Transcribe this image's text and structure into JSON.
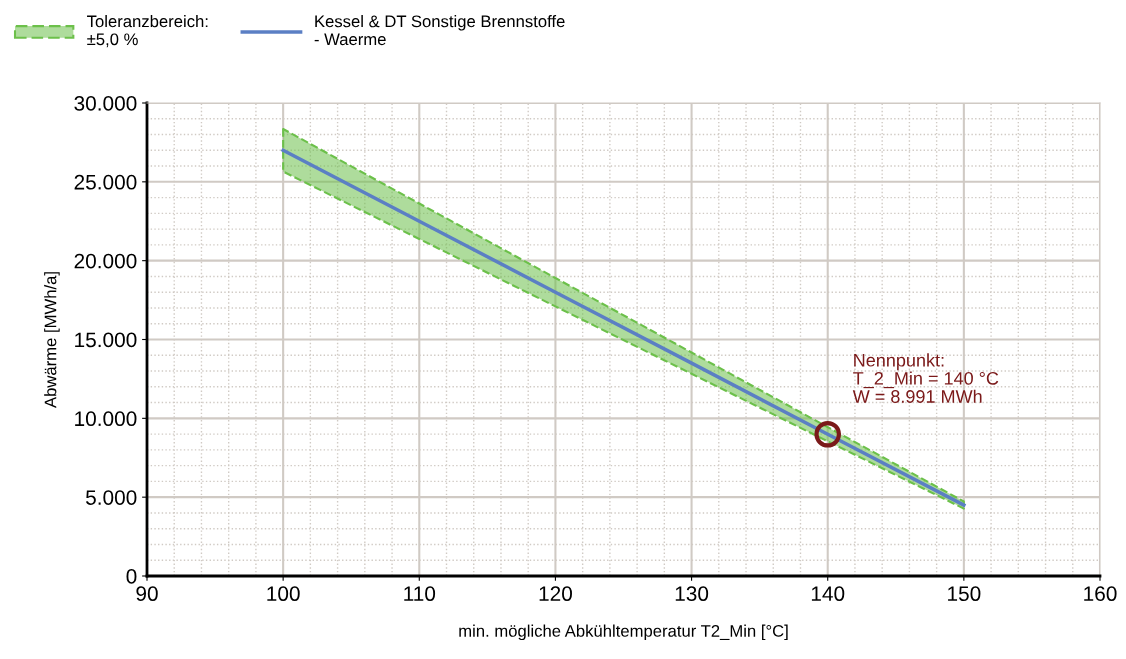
{
  "chart_data": {
    "type": "line",
    "xlabel": "min. mögliche Abkühltemperatur T2_Min [°C]",
    "ylabel": "Abwärme [MWh/a]",
    "xlim": [
      90,
      160
    ],
    "xticks": [
      90,
      100,
      110,
      120,
      130,
      140,
      150,
      160
    ],
    "ylim": [
      0,
      30000
    ],
    "yticks": [
      {
        "value": 0,
        "label": "0"
      },
      {
        "value": 5000,
        "label": "5.000"
      },
      {
        "value": 10000,
        "label": "10.000"
      },
      {
        "value": 15000,
        "label": "15.000"
      },
      {
        "value": 20000,
        "label": "20.000"
      },
      {
        "value": 25000,
        "label": "25.000"
      },
      {
        "value": 30000,
        "label": "30.000"
      }
    ],
    "grid": true,
    "legend": "top left",
    "series": [
      {
        "name": "Kessel & DT Sonstige Brennstoffe\n- Waerme",
        "color": "#5b7fc4",
        "line_style": "solid",
        "marker": "none",
        "x": [
          100,
          110,
          120,
          130,
          140,
          150
        ],
        "values": [
          27000,
          22500,
          18000,
          13500,
          8991,
          4500
        ],
        "lower": [
          25650,
          21375,
          17100,
          12825,
          8541,
          4275
        ],
        "upper": [
          28350,
          23625,
          18900,
          14175,
          9441,
          4725
        ]
      },
      {
        "type": "scatter",
        "color": "#7b1a1a",
        "marker": "circle",
        "x": [
          140
        ],
        "values": [
          8991
        ]
      }
    ],
    "annotations": [
      "Toleranzbereich:\n±5,0 %",
      {
        "text": "Nennpunkt:\nT_2_Min = 140 °C\nW = 8.991 MWh",
        "x": 140,
        "y": 8991
      }
    ]
  }
}
